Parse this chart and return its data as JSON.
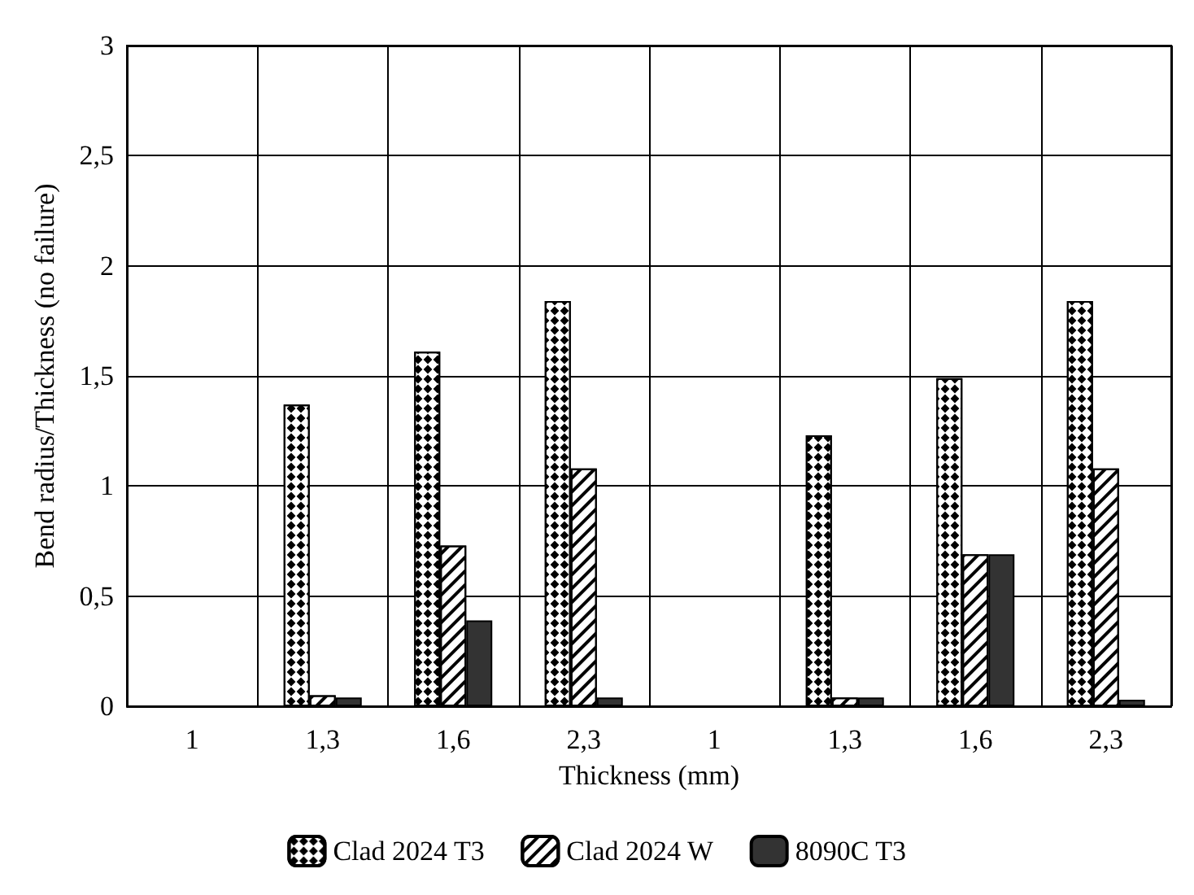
{
  "chart_data": {
    "type": "bar",
    "xlabel": "Thickness (mm)",
    "ylabel": "Bend radius/Thickness (no failure)",
    "categories": [
      "1",
      "1,3",
      "1,6",
      "2,3",
      "1",
      "1,3",
      "1,6",
      "2,3"
    ],
    "series": [
      {
        "name": "Clad 2024 T3",
        "color": "#ffffff",
        "values": [
          null,
          1.37,
          1.61,
          1.84,
          null,
          1.23,
          1.49,
          1.84
        ]
      },
      {
        "name": "Clad 2024 W",
        "color": "#ffffff",
        "values": [
          null,
          0.05,
          0.73,
          1.08,
          null,
          0.04,
          0.69,
          1.08
        ]
      },
      {
        "name": "8090C T3",
        "color": "#333333",
        "values": [
          null,
          0.04,
          0.39,
          0.04,
          null,
          0.04,
          0.69,
          0.03
        ]
      }
    ],
    "ylim": [
      0,
      3
    ],
    "yticks": [
      0,
      {
        "value": 0.5,
        "label": "0,5"
      },
      1,
      {
        "value": 1.5,
        "label": "1,5"
      },
      2,
      {
        "value": 2.5,
        "label": "2,5"
      },
      3
    ],
    "grid": true,
    "legend": "bottom"
  }
}
